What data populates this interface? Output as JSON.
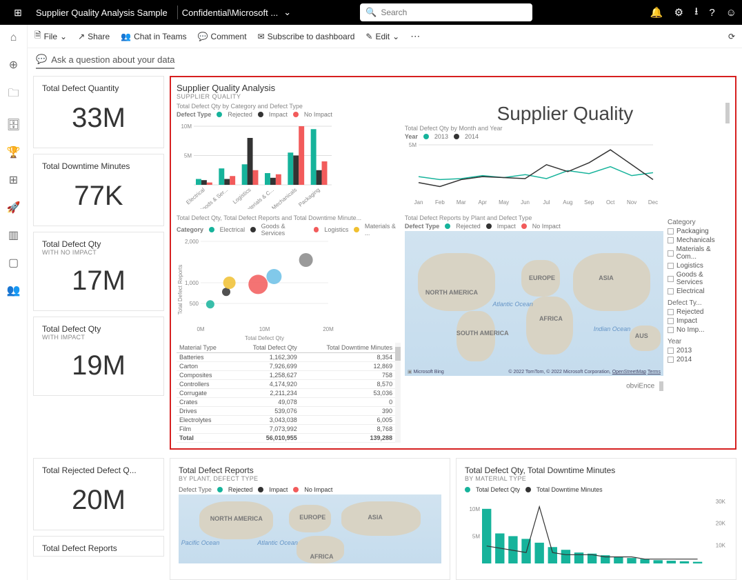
{
  "top": {
    "title": "Supplier Quality Analysis Sample",
    "workspace": "Confidential\\Microsoft ...",
    "search_placeholder": "Search"
  },
  "cmd": {
    "file": "File",
    "share": "Share",
    "chat": "Chat in Teams",
    "comment": "Comment",
    "subscribe": "Subscribe to dashboard",
    "edit": "Edit"
  },
  "qa_placeholder": "Ask a question about your data",
  "tiles": [
    {
      "title": "Total Defect Quantity",
      "sub": "",
      "num": "33M"
    },
    {
      "title": "Total Downtime Minutes",
      "sub": "",
      "num": "77K"
    },
    {
      "title": "Total Defect Qty",
      "sub": "WITH NO IMPACT",
      "num": "17M"
    },
    {
      "title": "Total Defect Qty",
      "sub": "WITH IMPACT",
      "num": "19M"
    },
    {
      "title": "Total Rejected Defect Q...",
      "sub": "",
      "num": "20M"
    },
    {
      "title": "Total Defect Reports",
      "sub": "",
      "num": ""
    }
  ],
  "pinned": {
    "title": "Supplier Quality Analysis",
    "sub": "SUPPLIER QUALITY",
    "big_title": "Supplier Quality",
    "brand": "obviEnce"
  },
  "colors": {
    "rejected": "#16b39b",
    "impact": "#333333",
    "noimpact": "#f25b5b",
    "electrical": "#16b39b",
    "goods": "#333333",
    "logistics": "#f25b5b",
    "materials": "#f0c030",
    "y2013": "#16b39b",
    "y2014": "#333333"
  },
  "bar_chart": {
    "title": "Total Defect Qty by Category and Defect Type",
    "legend_label": "Defect Type",
    "legend": [
      "Rejected",
      "Impact",
      "No Impact"
    ],
    "categories": [
      "Electrical",
      "Goods & Ser...",
      "Logistics",
      "Materials & C...",
      "Mechanicals",
      "Packaging"
    ],
    "ylim": 10,
    "ylabel_top": "10M",
    "ylabel_mid": "5M",
    "series": {
      "rejected": [
        1.0,
        2.8,
        3.5,
        2.0,
        5.5,
        9.5
      ],
      "impact": [
        0.8,
        1.0,
        8.0,
        1.2,
        5.0,
        2.5
      ],
      "noimpact": [
        0.4,
        1.5,
        2.5,
        1.8,
        10.0,
        4.0
      ]
    }
  },
  "line_chart": {
    "title": "Total Defect Qty by Month and Year",
    "legend_label": "Year",
    "legend": [
      "2013",
      "2014"
    ],
    "months": [
      "Jan",
      "Feb",
      "Mar",
      "Apr",
      "May",
      "Jun",
      "Jul",
      "Aug",
      "Sep",
      "Oct",
      "Nov",
      "Dec"
    ],
    "ylim": 5,
    "ylabel": "5M",
    "series": {
      "y2013": [
        1.8,
        1.5,
        1.6,
        1.9,
        1.7,
        2.0,
        1.6,
        2.4,
        2.1,
        2.8,
        1.9,
        2.2
      ],
      "y2014": [
        1.2,
        0.8,
        1.5,
        1.8,
        1.7,
        1.6,
        3.0,
        2.3,
        3.2,
        4.5,
        3.0,
        1.5
      ]
    }
  },
  "scatter": {
    "title": "Total Defect Qty, Total Defect Reports and Total Downtime Minute...",
    "legend_label": "Category",
    "legend": [
      "Electrical",
      "Goods & Services",
      "Logistics",
      "Materials & ..."
    ],
    "xlabel": "Total Defect Qty",
    "ylabel": "Total Defect Reports",
    "xlim": 20,
    "ylim": 2000,
    "xticks": [
      "0M",
      "10M",
      "20M"
    ],
    "yticks": [
      "500",
      "1,000",
      "2,000"
    ],
    "points": [
      {
        "x": 1.5,
        "y": 480,
        "r": 6,
        "c": "#16b39b"
      },
      {
        "x": 4.0,
        "y": 780,
        "r": 6,
        "c": "#333333"
      },
      {
        "x": 4.5,
        "y": 1000,
        "r": 9,
        "c": "#f0c030"
      },
      {
        "x": 9.0,
        "y": 960,
        "r": 14,
        "c": "#f25b5b"
      },
      {
        "x": 11.5,
        "y": 1150,
        "r": 11,
        "c": "#6bbfe6"
      },
      {
        "x": 16.5,
        "y": 1550,
        "r": 10,
        "c": "#888888"
      }
    ]
  },
  "table": {
    "columns": [
      "Material Type",
      "Total Defect Qty",
      "Total Downtime Minutes"
    ],
    "rows": [
      [
        "Batteries",
        "1,162,309",
        "8,354"
      ],
      [
        "Carton",
        "7,926,699",
        "12,869"
      ],
      [
        "Composites",
        "1,258,627",
        "758"
      ],
      [
        "Controllers",
        "4,174,920",
        "8,570"
      ],
      [
        "Corrugate",
        "2,211,234",
        "53,036"
      ],
      [
        "Crates",
        "49,078",
        "0"
      ],
      [
        "Drives",
        "539,076",
        "390"
      ],
      [
        "Electrolytes",
        "3,043,038",
        "6,005"
      ],
      [
        "Film",
        "7,073,992",
        "8,768"
      ]
    ],
    "total": [
      "Total",
      "56,010,955",
      "139,288"
    ]
  },
  "map": {
    "title": "Total Defect Reports by Plant and Defect Type",
    "legend_label": "Defect Type",
    "legend": [
      "Rejected",
      "Impact",
      "No Impact"
    ],
    "continents": [
      "NORTH AMERICA",
      "SOUTH AMERICA",
      "EUROPE",
      "AFRICA",
      "ASIA",
      "AUS"
    ],
    "oceans": [
      "Atlantic Ocean",
      "Indian Ocean"
    ],
    "attrib_bing": "Microsoft Bing",
    "attrib_text": "© 2022 TomTom, © 2022 Microsoft Corporation,",
    "attrib_link1": "OpenStreetMap",
    "attrib_link2": "Terms"
  },
  "filters": {
    "category_title": "Category",
    "categories": [
      "Packaging",
      "Mechanicals",
      "Materials & Com...",
      "Logistics",
      "Goods & Services",
      "Electrical"
    ],
    "defect_title": "Defect Ty...",
    "defects": [
      "Rejected",
      "Impact",
      "No Imp..."
    ],
    "year_title": "Year",
    "years": [
      "2013",
      "2014"
    ]
  },
  "bottom_left": {
    "title": "Total Defect Reports",
    "sub": "BY PLANT, DEFECT TYPE",
    "legend_label": "Defect Type",
    "legend": [
      "Rejected",
      "Impact",
      "No Impact"
    ],
    "continents": [
      "NORTH AMERICA",
      "EUROPE",
      "ASIA",
      "AFRICA"
    ],
    "oceans": [
      "Pacific Ocean",
      "Atlantic Ocean"
    ]
  },
  "bottom_right": {
    "title": "Total Defect Qty, Total Downtime Minutes",
    "sub": "BY MATERIAL TYPE",
    "legend": [
      "Total Defect Qty",
      "Total Downtime Minutes"
    ],
    "y_right": [
      "30K",
      "20K",
      "10K"
    ],
    "y_left": [
      "10M",
      "5M"
    ],
    "bars": [
      10,
      5.5,
      5,
      4.5,
      3.8,
      3,
      2.5,
      2,
      1.8,
      1.5,
      1.2,
      1,
      0.8,
      0.6,
      0.5,
      0.4,
      0.3
    ],
    "line": [
      8,
      7,
      6,
      5,
      26,
      5,
      4,
      4,
      4,
      3,
      3,
      3,
      2,
      2,
      2,
      2,
      2
    ]
  }
}
